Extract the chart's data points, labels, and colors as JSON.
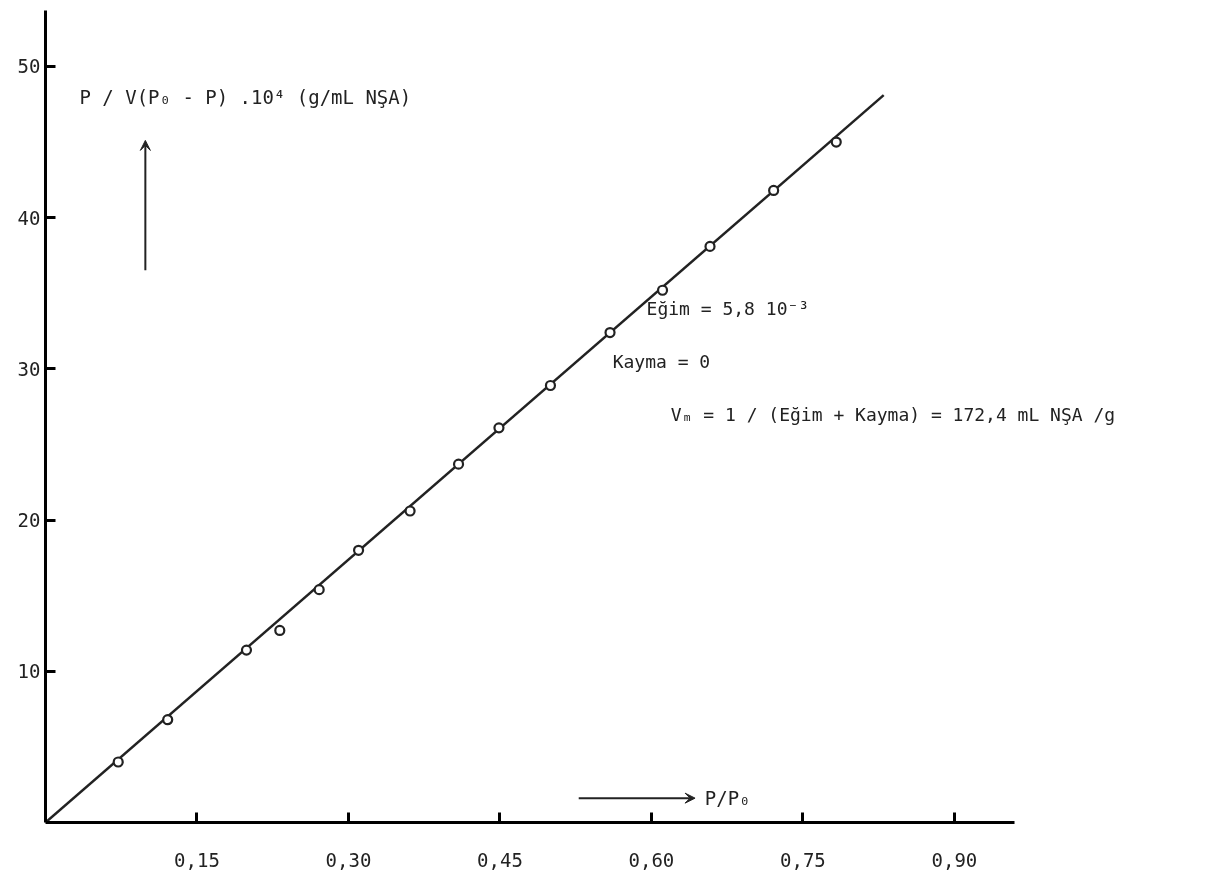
{
  "chart_data": {
    "type": "scatter",
    "xlabel": "P/P₀",
    "ylabel": "P / V(P₀ - P) .10⁴ (g/mL NŞA)",
    "annotations": [
      "Eğim = 5,8 10⁻³",
      "Kayma = 0",
      "Vₘ = 1 / (Eğim + Kayma) = 172,4 mL NŞA /g"
    ],
    "series": [
      {
        "type": "line",
        "color": "#222222",
        "x": [
          0,
          0.83
        ],
        "values": [
          0,
          48.1
        ]
      },
      {
        "marker": "circle",
        "color": "#222222",
        "x": [
          0.072,
          0.121,
          0.199,
          0.232,
          0.271,
          0.31,
          0.361,
          0.409,
          0.449,
          0.5,
          0.559,
          0.611,
          0.658,
          0.721,
          0.783
        ],
        "values": [
          4.0,
          6.8,
          11.4,
          12.7,
          15.4,
          18.0,
          20.6,
          23.7,
          26.1,
          28.9,
          32.4,
          35.2,
          38.1,
          41.8,
          45.0
        ]
      }
    ],
    "xlim": [
      0,
      0.96
    ],
    "ylim": [
      0,
      53.7
    ],
    "xticks": [
      {
        "value": 0.15,
        "label": "0,15"
      },
      {
        "value": 0.3,
        "label": "0,30"
      },
      {
        "value": 0.45,
        "label": "0,45"
      },
      {
        "value": 0.6,
        "label": "0,60"
      },
      {
        "value": 0.75,
        "label": "0,75"
      },
      {
        "value": 0.9,
        "label": "0,90"
      }
    ],
    "yticks": [
      10,
      20,
      30,
      40,
      50
    ],
    "grid": false
  }
}
